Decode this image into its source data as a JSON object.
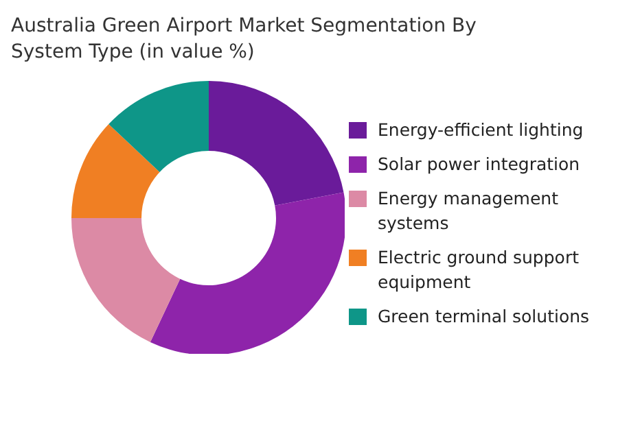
{
  "chart_data": {
    "type": "donut",
    "title": "Australia Green Airport Market Segmentation By System Type (in value %)",
    "categories": [
      "Energy-efficient lighting",
      "Solar power integration",
      "Energy management systems",
      "Electric ground support equipment",
      "Green terminal solutions"
    ],
    "values": [
      22,
      35,
      18,
      12,
      13
    ],
    "colors": [
      "#6a1b9a",
      "#8e24aa",
      "#dc8aa5",
      "#f07f23",
      "#0e9688"
    ],
    "legend": "right"
  }
}
